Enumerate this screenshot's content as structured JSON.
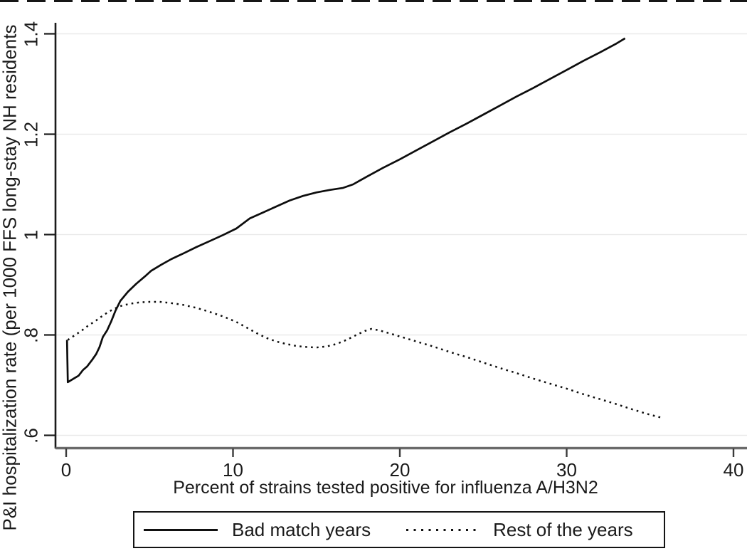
{
  "chart_data": {
    "type": "line",
    "title": "",
    "xlabel": "Percent of strains tested positive for influenza A/H3N2",
    "ylabel": "P&I hospitalization rate (per 1000 FFS long-stay NH residents",
    "xlim": [
      -0.6,
      40.8
    ],
    "ylim": [
      0.575,
      1.42
    ],
    "grid": "horizontal-only",
    "gridline_color": "#e9e9e9",
    "axis_color": "#1a1a1a",
    "bottom_axis_color": "#6a6a6a",
    "line_color": "#0d0d0d",
    "legend_position": "bottom",
    "xticks": [
      {
        "value": 0,
        "label": "0"
      },
      {
        "value": 10,
        "label": "10"
      },
      {
        "value": 20,
        "label": "20"
      },
      {
        "value": 30,
        "label": "30"
      },
      {
        "value": 40,
        "label": "40"
      }
    ],
    "yticks": [
      {
        "value": 0.6,
        "label": ".6"
      },
      {
        "value": 0.8,
        "label": ".8"
      },
      {
        "value": 1.0,
        "label": "1"
      },
      {
        "value": 1.2,
        "label": "1.2"
      },
      {
        "value": 1.4,
        "label": "1.4"
      }
    ],
    "series": [
      {
        "name": "Bad match years",
        "line_style": "solid",
        "points": [
          [
            0.05,
            0.79
          ],
          [
            0.1,
            0.706
          ],
          [
            0.45,
            0.713
          ],
          [
            0.75,
            0.719
          ],
          [
            1.0,
            0.73
          ],
          [
            1.25,
            0.737
          ],
          [
            1.55,
            0.75
          ],
          [
            1.8,
            0.762
          ],
          [
            2.0,
            0.776
          ],
          [
            2.2,
            0.796
          ],
          [
            2.45,
            0.809
          ],
          [
            2.7,
            0.827
          ],
          [
            2.95,
            0.848
          ],
          [
            3.25,
            0.868
          ],
          [
            3.7,
            0.886
          ],
          [
            4.2,
            0.902
          ],
          [
            4.7,
            0.916
          ],
          [
            5.1,
            0.928
          ],
          [
            5.7,
            0.94
          ],
          [
            6.3,
            0.951
          ],
          [
            7.0,
            0.962
          ],
          [
            7.8,
            0.975
          ],
          [
            8.6,
            0.987
          ],
          [
            9.4,
            0.999
          ],
          [
            10.2,
            1.012
          ],
          [
            11.0,
            1.032
          ],
          [
            11.8,
            1.044
          ],
          [
            12.6,
            1.056
          ],
          [
            13.4,
            1.068
          ],
          [
            14.2,
            1.077
          ],
          [
            15.0,
            1.084
          ],
          [
            15.8,
            1.089
          ],
          [
            16.6,
            1.093
          ],
          [
            17.2,
            1.1
          ],
          [
            18.0,
            1.115
          ],
          [
            19.0,
            1.133
          ],
          [
            20.0,
            1.15
          ],
          [
            21.0,
            1.168
          ],
          [
            22.0,
            1.186
          ],
          [
            23.0,
            1.204
          ],
          [
            24.0,
            1.221
          ],
          [
            25.0,
            1.239
          ],
          [
            26.0,
            1.257
          ],
          [
            27.0,
            1.275
          ],
          [
            28.0,
            1.292
          ],
          [
            29.0,
            1.31
          ],
          [
            30.0,
            1.328
          ],
          [
            31.0,
            1.346
          ],
          [
            32.0,
            1.363
          ],
          [
            33.0,
            1.381
          ],
          [
            33.5,
            1.391
          ]
        ]
      },
      {
        "name": "Rest of the years",
        "line_style": "dotted",
        "points": [
          [
            0.1,
            0.79
          ],
          [
            0.5,
            0.799
          ],
          [
            0.9,
            0.808
          ],
          [
            1.3,
            0.818
          ],
          [
            1.8,
            0.829
          ],
          [
            2.3,
            0.841
          ],
          [
            2.8,
            0.851
          ],
          [
            3.3,
            0.858
          ],
          [
            3.8,
            0.862
          ],
          [
            4.4,
            0.865
          ],
          [
            5.0,
            0.866
          ],
          [
            5.6,
            0.866
          ],
          [
            6.2,
            0.864
          ],
          [
            7.0,
            0.86
          ],
          [
            7.8,
            0.854
          ],
          [
            8.6,
            0.846
          ],
          [
            9.4,
            0.837
          ],
          [
            10.2,
            0.826
          ],
          [
            10.8,
            0.815
          ],
          [
            11.4,
            0.804
          ],
          [
            12.0,
            0.794
          ],
          [
            12.6,
            0.787
          ],
          [
            13.2,
            0.782
          ],
          [
            13.8,
            0.778
          ],
          [
            14.4,
            0.776
          ],
          [
            15.0,
            0.775
          ],
          [
            15.6,
            0.777
          ],
          [
            16.2,
            0.782
          ],
          [
            16.8,
            0.79
          ],
          [
            17.4,
            0.8
          ],
          [
            17.9,
            0.808
          ],
          [
            18.3,
            0.812
          ],
          [
            18.8,
            0.809
          ],
          [
            19.4,
            0.803
          ],
          [
            20.0,
            0.797
          ],
          [
            21.0,
            0.787
          ],
          [
            22.0,
            0.777
          ],
          [
            23.0,
            0.766
          ],
          [
            24.0,
            0.756
          ],
          [
            25.0,
            0.745
          ],
          [
            26.0,
            0.734
          ],
          [
            27.0,
            0.724
          ],
          [
            28.0,
            0.713
          ],
          [
            29.0,
            0.703
          ],
          [
            30.0,
            0.693
          ],
          [
            31.0,
            0.682
          ],
          [
            32.0,
            0.672
          ],
          [
            33.0,
            0.662
          ],
          [
            34.0,
            0.651
          ],
          [
            35.0,
            0.641
          ],
          [
            35.7,
            0.635
          ]
        ]
      }
    ]
  }
}
